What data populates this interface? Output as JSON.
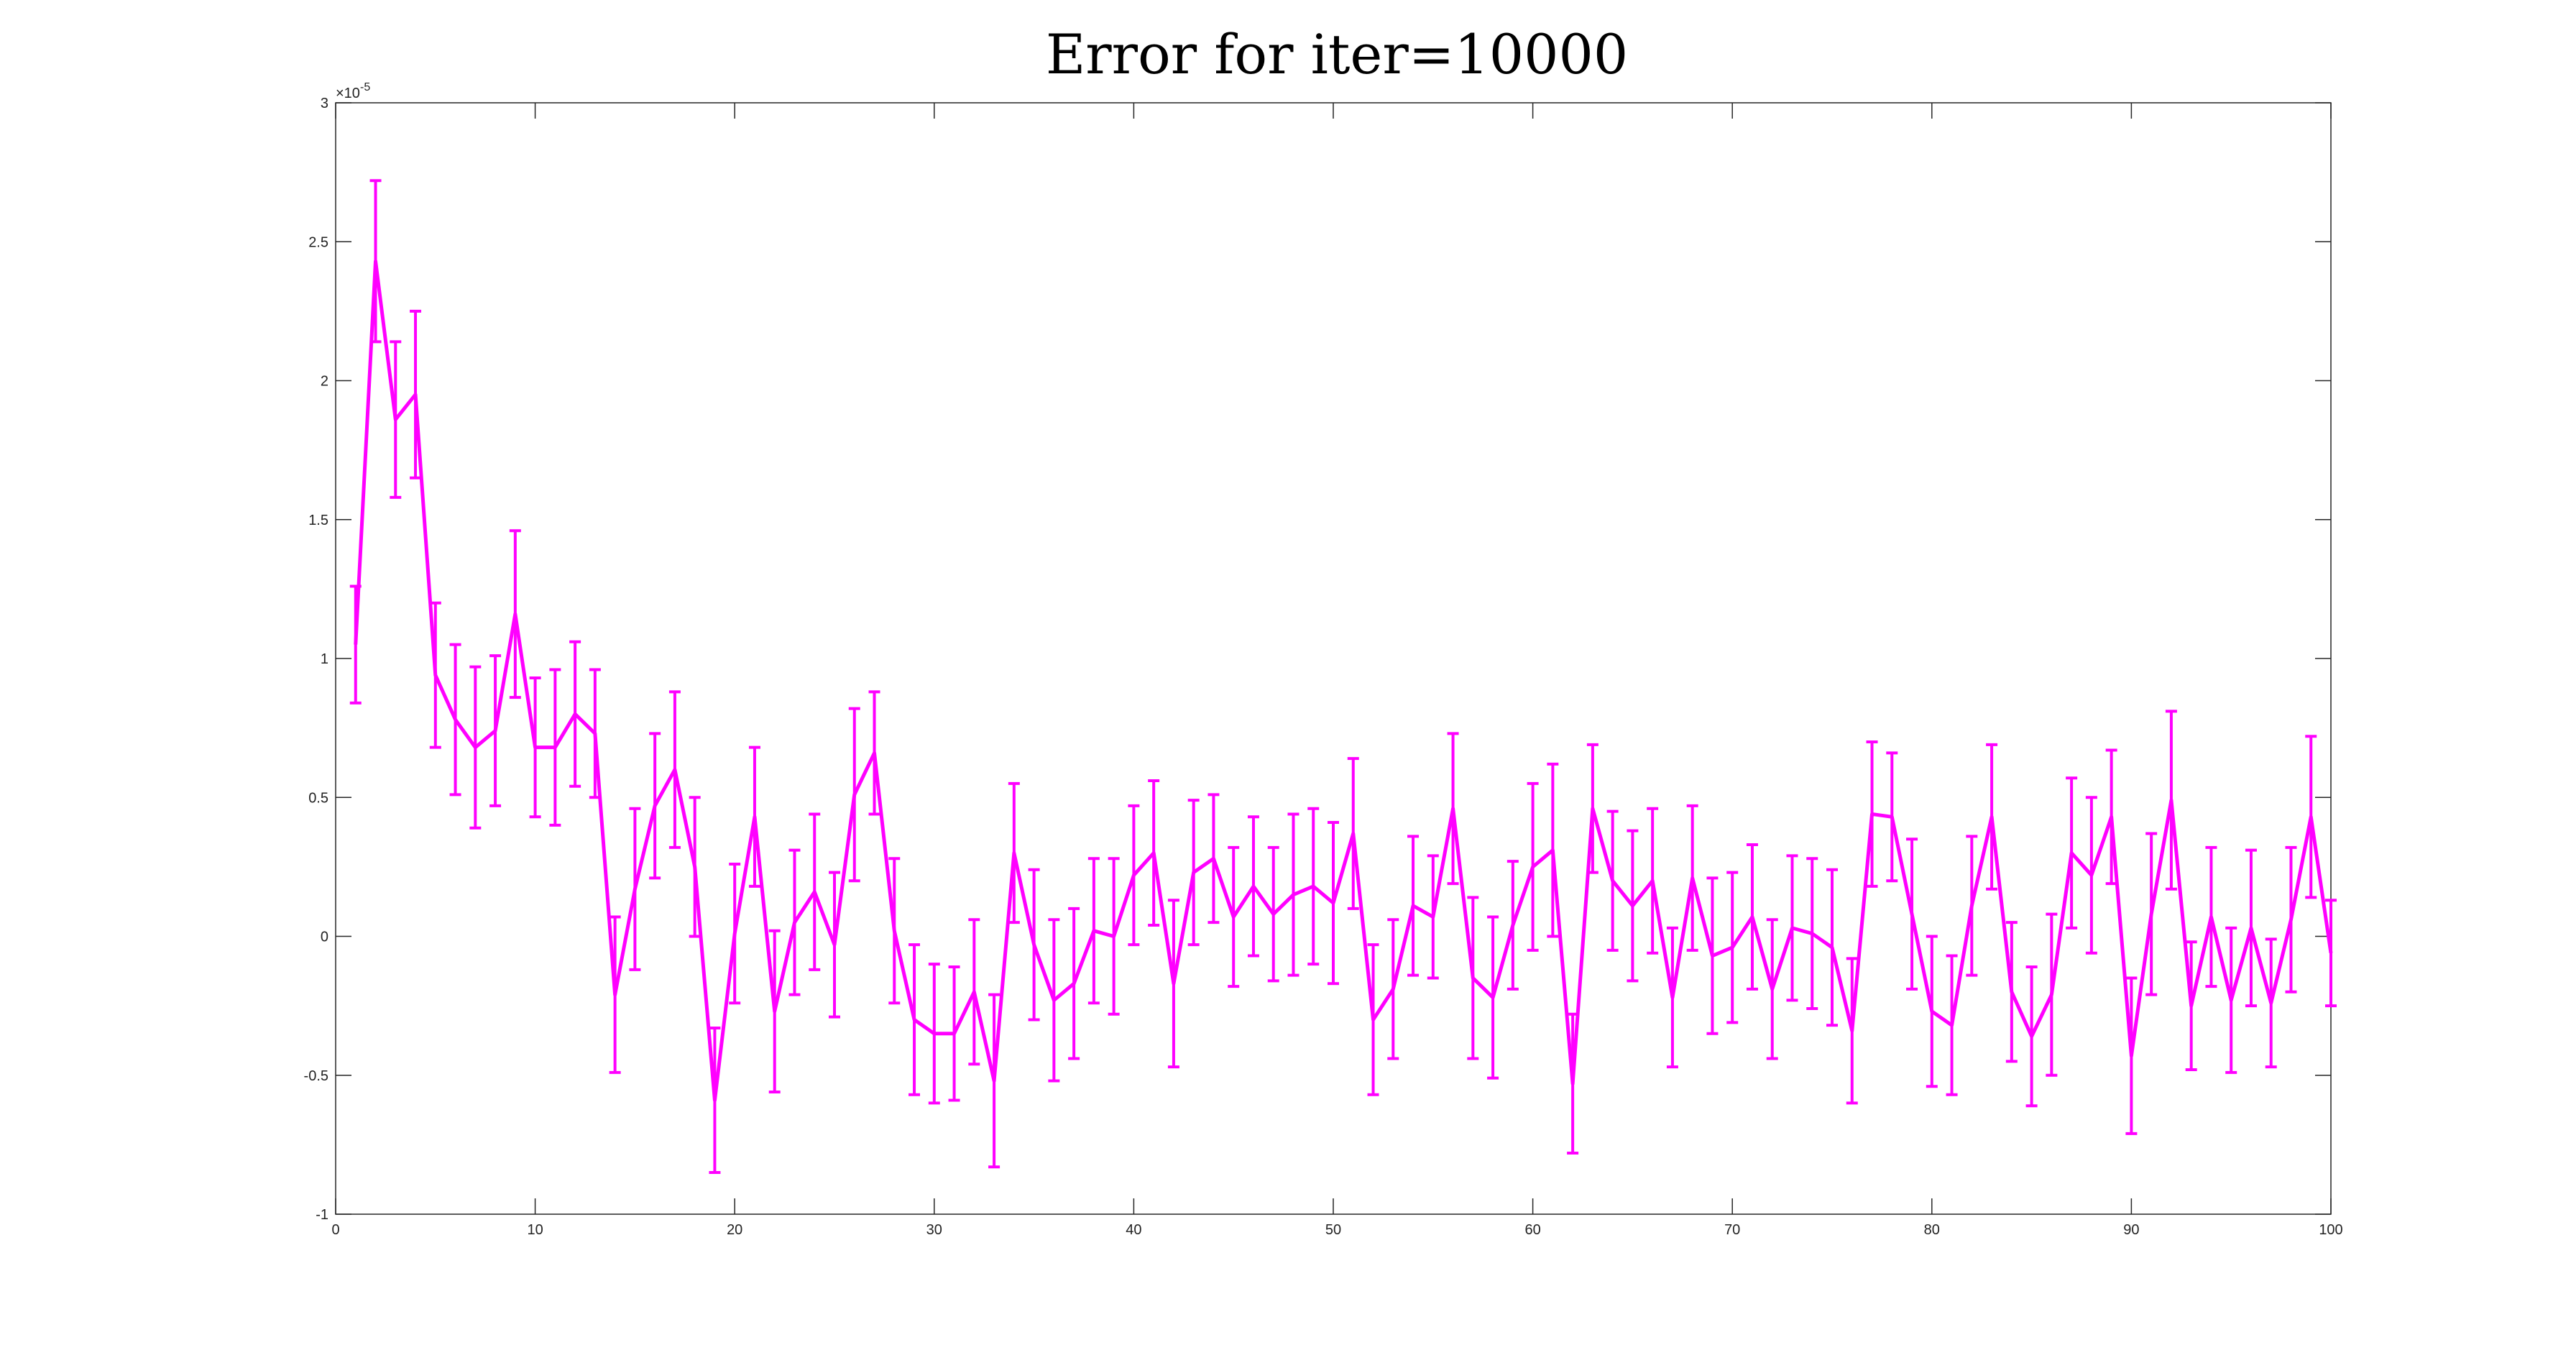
{
  "chart_data": {
    "type": "line",
    "title": "Error for iter=10000",
    "xlabel": "",
    "ylabel": "",
    "xlim": [
      0,
      100
    ],
    "ylim": [
      -1,
      3
    ],
    "y_scale_label": "×10",
    "y_scale_exponent": "-5",
    "x_ticks": [
      "0",
      "10",
      "20",
      "30",
      "40",
      "50",
      "60",
      "70",
      "80",
      "90",
      "100"
    ],
    "y_ticks": [
      "-1",
      "-0.5",
      "0",
      "0.5",
      "1",
      "1.5",
      "2",
      "2.5",
      "3"
    ],
    "grid": false,
    "color": "#ff00ff",
    "series": [
      {
        "x": [
          1,
          2,
          3,
          4,
          5,
          6,
          7,
          8,
          9,
          10,
          11,
          12,
          13,
          14,
          15,
          16,
          17,
          18,
          19,
          20,
          21,
          22,
          23,
          24,
          25,
          26,
          27,
          28,
          29,
          30,
          31,
          32,
          33,
          34,
          35,
          36,
          37,
          38,
          39,
          40,
          41,
          42,
          43,
          44,
          45,
          46,
          47,
          48,
          49,
          50,
          51,
          52,
          53,
          54,
          55,
          56,
          57,
          58,
          59,
          60,
          61,
          62,
          63,
          64,
          65,
          66,
          67,
          68,
          69,
          70,
          71,
          72,
          73,
          74,
          75,
          76,
          77,
          78,
          79,
          80,
          81,
          82,
          83,
          84,
          85,
          86,
          87,
          88,
          89,
          90,
          91,
          92,
          93,
          94,
          95,
          96,
          97,
          98,
          99,
          100
        ],
        "values": [
          1.05,
          2.43,
          1.86,
          1.95,
          0.94,
          0.78,
          0.68,
          0.74,
          1.16,
          0.68,
          0.68,
          0.8,
          0.73,
          -0.21,
          0.17,
          0.47,
          0.6,
          0.25,
          -0.59,
          0.01,
          0.43,
          -0.27,
          0.05,
          0.16,
          -0.03,
          0.51,
          0.66,
          0.02,
          -0.3,
          -0.35,
          -0.35,
          -0.2,
          -0.52,
          0.3,
          -0.03,
          -0.23,
          -0.17,
          0.02,
          0.0,
          0.22,
          0.3,
          -0.17,
          0.23,
          0.28,
          0.07,
          0.18,
          0.08,
          0.15,
          0.18,
          0.12,
          0.37,
          -0.3,
          -0.19,
          0.11,
          0.07,
          0.46,
          -0.15,
          -0.22,
          0.04,
          0.25,
          0.31,
          -0.53,
          0.46,
          0.2,
          0.11,
          0.2,
          -0.22,
          0.21,
          -0.07,
          -0.04,
          0.07,
          -0.19,
          0.03,
          0.01,
          -0.04,
          -0.34,
          0.44,
          0.43,
          0.08,
          -0.27,
          -0.32,
          0.11,
          0.43,
          -0.2,
          -0.36,
          -0.21,
          0.3,
          0.22,
          0.43,
          -0.43,
          0.08,
          0.49,
          -0.25,
          0.07,
          -0.23,
          0.03,
          -0.24,
          0.06,
          0.43,
          -0.06
        ],
        "error": [
          0.21,
          0.29,
          0.28,
          0.3,
          0.26,
          0.27,
          0.29,
          0.27,
          0.3,
          0.25,
          0.28,
          0.26,
          0.23,
          0.28,
          0.29,
          0.26,
          0.28,
          0.25,
          0.26,
          0.25,
          0.25,
          0.29,
          0.26,
          0.28,
          0.26,
          0.31,
          0.22,
          0.26,
          0.27,
          0.25,
          0.24,
          0.26,
          0.31,
          0.25,
          0.27,
          0.29,
          0.27,
          0.26,
          0.28,
          0.25,
          0.26,
          0.3,
          0.26,
          0.23,
          0.25,
          0.25,
          0.24,
          0.29,
          0.28,
          0.29,
          0.27,
          0.27,
          0.25,
          0.25,
          0.22,
          0.27,
          0.29,
          0.29,
          0.23,
          0.3,
          0.31,
          0.25,
          0.23,
          0.25,
          0.27,
          0.26,
          0.25,
          0.26,
          0.28,
          0.27,
          0.26,
          0.25,
          0.26,
          0.27,
          0.28,
          0.26,
          0.26,
          0.23,
          0.27,
          0.27,
          0.25,
          0.25,
          0.26,
          0.25,
          0.25,
          0.29,
          0.27,
          0.28,
          0.24,
          0.28,
          0.29,
          0.32,
          0.23,
          0.25,
          0.26,
          0.28,
          0.23,
          0.26,
          0.29,
          0.19
        ]
      }
    ]
  }
}
